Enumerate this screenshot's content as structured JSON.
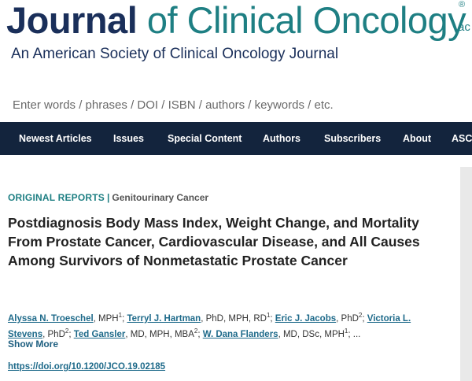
{
  "masthead": {
    "title_first": "Journal",
    "title_rest": " of Clinical Oncology",
    "registered_mark": "®",
    "asco_fragment": "ac",
    "tagline": "An American Society of Clinical Oncology Journal"
  },
  "search": {
    "placeholder": "Enter words / phrases / DOI / ISBN / authors / keywords / etc."
  },
  "nav": {
    "items": [
      "Newest Articles",
      "Issues",
      "Special Content",
      "Authors",
      "Subscribers",
      "About",
      "ASC"
    ]
  },
  "article": {
    "type": "ORIGINAL REPORTS",
    "separator": "|",
    "subject": "Genitourinary Cancer",
    "title": "Postdiagnosis Body Mass Index, Weight Change, and Mortality From Prostate Cancer, Cardiovascular Disease, and All Causes Among Survivors of Nonmetastatic Prostate Cancer",
    "authors": [
      {
        "name": "Alyssa N. Troeschel",
        "creds": ", MPH",
        "sup": "1",
        "after": "; "
      },
      {
        "name": "Terryl J. Hartman",
        "creds": ", PhD, MPH, RD",
        "sup": "1",
        "after": "; "
      },
      {
        "name": "Eric J. Jacobs",
        "creds": ", PhD",
        "sup": "2",
        "after": "; "
      },
      {
        "name": "Victoria L. Stevens",
        "creds": ", PhD",
        "sup": "2",
        "after": "; "
      },
      {
        "name": "Ted Gansler",
        "creds": ", MD, MPH, MBA",
        "sup": "2",
        "after": "; "
      },
      {
        "name": "W. Dana Flanders",
        "creds": ", MD, DSc, MPH",
        "sup": "1",
        "after": "; ..."
      }
    ],
    "show_more": "Show More",
    "doi": "https://doi.org/10.1200/JCO.19.02185"
  }
}
